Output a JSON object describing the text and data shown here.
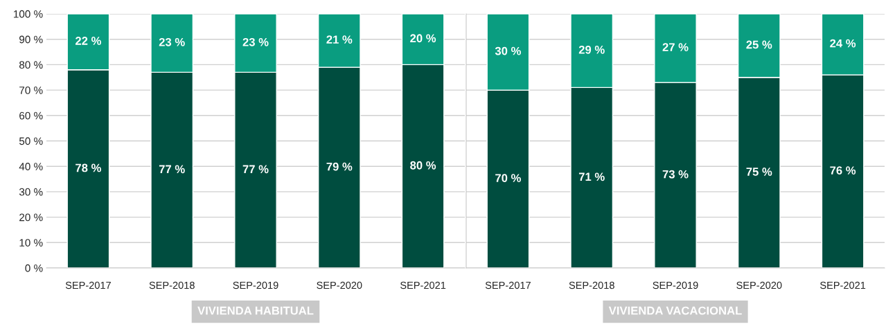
{
  "chart_data": [
    {
      "type": "bar",
      "stacked": true,
      "xlabel": "VIVIENDA HABITUAL",
      "categories": [
        "SEP-2017",
        "SEP-2018",
        "SEP-2019",
        "SEP-2020",
        "SEP-2021"
      ],
      "series": [
        {
          "color": "#004d3f",
          "values": [
            78,
            77,
            77,
            79,
            80
          ],
          "value_labels": [
            "78 %",
            "77 %",
            "77 %",
            "79 %",
            "80 %"
          ]
        },
        {
          "color": "#0a9d80",
          "values": [
            22,
            23,
            23,
            21,
            20
          ],
          "value_labels": [
            "22 %",
            "23 %",
            "23 %",
            "21 %",
            "20 %"
          ]
        }
      ],
      "ylim": [
        0,
        100
      ],
      "yticks": [
        {
          "value": 0,
          "label": "0 %"
        },
        {
          "value": 10,
          "label": "10 %"
        },
        {
          "value": 20,
          "label": "20 %"
        },
        {
          "value": 30,
          "label": "30 %"
        },
        {
          "value": 40,
          "label": "40 %"
        },
        {
          "value": 50,
          "label": "50 %"
        },
        {
          "value": 60,
          "label": "60 %"
        },
        {
          "value": 70,
          "label": "70 %"
        },
        {
          "value": 80,
          "label": "80 %"
        },
        {
          "value": 90,
          "label": "90 %"
        },
        {
          "value": 100,
          "label": "100 %"
        }
      ],
      "grid": "y"
    },
    {
      "type": "bar",
      "stacked": true,
      "xlabel": "VIVIENDA VACACIONAL",
      "categories": [
        "SEP-2017",
        "SEP-2018",
        "SEP-2019",
        "SEP-2020",
        "SEP-2021"
      ],
      "series": [
        {
          "color": "#004d3f",
          "values": [
            70,
            71,
            73,
            75,
            76
          ],
          "value_labels": [
            "70 %",
            "71 %",
            "73 %",
            "75 %",
            "76 %"
          ]
        },
        {
          "color": "#0a9d80",
          "values": [
            30,
            29,
            27,
            25,
            24
          ],
          "value_labels": [
            "30 %",
            "29 %",
            "27 %",
            "25 %",
            "24 %"
          ]
        }
      ],
      "ylim": [
        0,
        100
      ],
      "yticks": [
        {
          "value": 0,
          "label": null
        },
        {
          "value": 10,
          "label": null
        },
        {
          "value": 20,
          "label": null
        },
        {
          "value": 30,
          "label": null
        },
        {
          "value": 40,
          "label": null
        },
        {
          "value": 50,
          "label": null
        },
        {
          "value": 60,
          "label": null
        },
        {
          "value": 70,
          "label": null
        },
        {
          "value": 80,
          "label": null
        },
        {
          "value": 90,
          "label": null
        },
        {
          "value": 100,
          "label": null
        }
      ],
      "grid": "y",
      "tick_labels": "x"
    }
  ]
}
